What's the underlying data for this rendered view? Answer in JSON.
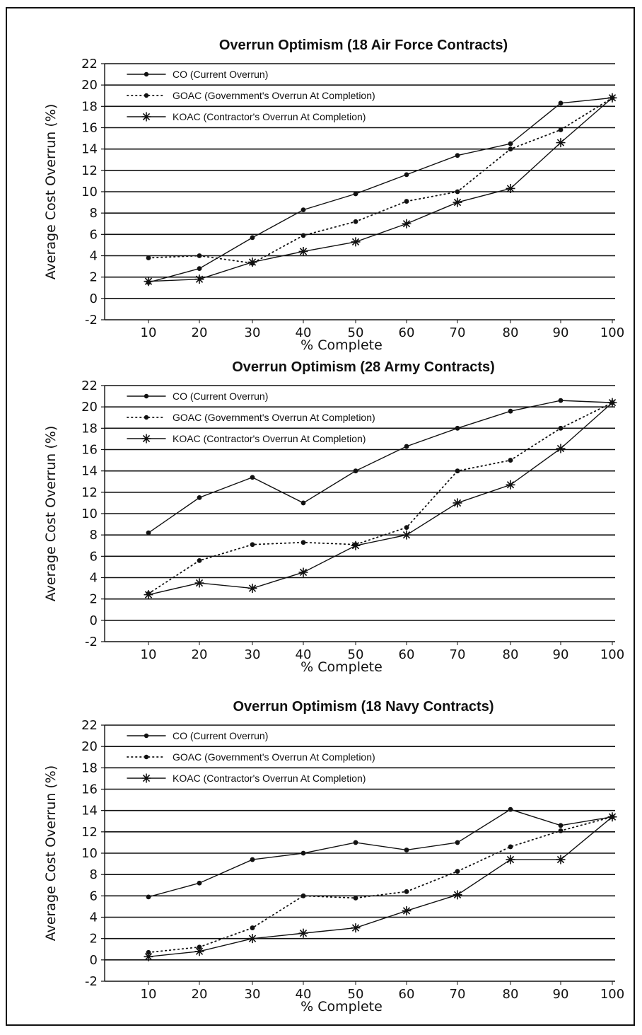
{
  "chart_data": [
    {
      "type": "line",
      "title": "Overrun Optimism (18 Air Force Contracts)",
      "xlabel": "% Complete",
      "ylabel": "Average Cost Overrun (%)",
      "x": [
        10,
        20,
        30,
        40,
        50,
        60,
        70,
        80,
        90,
        100
      ],
      "yticks": [
        22,
        20,
        18,
        16,
        14,
        12,
        10,
        8,
        6,
        4,
        2,
        0,
        -2
      ],
      "ylim": [
        -2,
        22
      ],
      "grid": true,
      "legend_position": "top-left",
      "series": [
        {
          "name": "CO (Current Overrun)",
          "marker": "dot",
          "dash": "solid",
          "values": [
            1.5,
            2.8,
            5.7,
            8.3,
            9.8,
            11.6,
            13.4,
            14.5,
            18.3,
            18.8
          ]
        },
        {
          "name": "GOAC (Government's Overrun At Completion)",
          "marker": "dot",
          "dash": "dotted",
          "values": [
            3.8,
            4.0,
            3.3,
            5.9,
            7.2,
            9.1,
            10.0,
            14.0,
            15.8,
            18.8
          ]
        },
        {
          "name": "KOAC (Contractor's Overrun At Completion)",
          "marker": "star",
          "dash": "solid",
          "values": [
            1.6,
            1.8,
            3.4,
            4.4,
            5.3,
            7.0,
            9.0,
            10.3,
            14.6,
            18.8
          ]
        }
      ]
    },
    {
      "type": "line",
      "title": "Overrun Optimism (28 Army Contracts)",
      "xlabel": "% Complete",
      "ylabel": "Average Cost Overrun (%)",
      "x": [
        10,
        20,
        30,
        40,
        50,
        60,
        70,
        80,
        90,
        100
      ],
      "yticks": [
        22,
        20,
        18,
        16,
        14,
        12,
        10,
        8,
        6,
        4,
        2,
        0,
        -2
      ],
      "ylim": [
        -2,
        22
      ],
      "grid": true,
      "legend_position": "top-left",
      "series": [
        {
          "name": "CO (Current Overrun)",
          "marker": "dot",
          "dash": "solid",
          "values": [
            8.2,
            11.5,
            13.4,
            11.0,
            14.0,
            16.3,
            18.0,
            19.6,
            20.6,
            20.4
          ]
        },
        {
          "name": "GOAC (Government's Overrun At Completion)",
          "marker": "dot",
          "dash": "dotted",
          "values": [
            2.5,
            5.6,
            7.1,
            7.3,
            7.1,
            8.7,
            14.0,
            15.0,
            18.0,
            20.4
          ]
        },
        {
          "name": "KOAC (Contractor's Overrun At Completion)",
          "marker": "star",
          "dash": "solid",
          "values": [
            2.4,
            3.5,
            3.0,
            4.5,
            7.0,
            8.0,
            11.0,
            12.7,
            16.1,
            20.4
          ]
        }
      ]
    },
    {
      "type": "line",
      "title": "Overrun Optimism (18 Navy Contracts)",
      "xlabel": "% Complete",
      "ylabel": "Average Cost Overrun (%)",
      "x": [
        10,
        20,
        30,
        40,
        50,
        60,
        70,
        80,
        90,
        100
      ],
      "yticks": [
        22,
        20,
        18,
        16,
        14,
        12,
        10,
        8,
        6,
        4,
        2,
        0,
        -2
      ],
      "ylim": [
        -2,
        22
      ],
      "grid": true,
      "legend_position": "top-left",
      "series": [
        {
          "name": "CO (Current Overrun)",
          "marker": "dot",
          "dash": "solid",
          "values": [
            5.9,
            7.2,
            9.4,
            10.0,
            11.0,
            10.3,
            11.0,
            14.1,
            12.6,
            13.4
          ]
        },
        {
          "name": "GOAC (Government's Overrun At Completion)",
          "marker": "dot",
          "dash": "dotted",
          "values": [
            0.7,
            1.2,
            3.0,
            6.0,
            5.8,
            6.4,
            8.3,
            10.6,
            12.1,
            13.4
          ]
        },
        {
          "name": "KOAC (Contractor's Overrun At Completion)",
          "marker": "star",
          "dash": "solid",
          "values": [
            0.3,
            0.8,
            2.0,
            2.5,
            3.0,
            4.6,
            6.1,
            9.4,
            9.4,
            13.4
          ]
        }
      ]
    }
  ]
}
